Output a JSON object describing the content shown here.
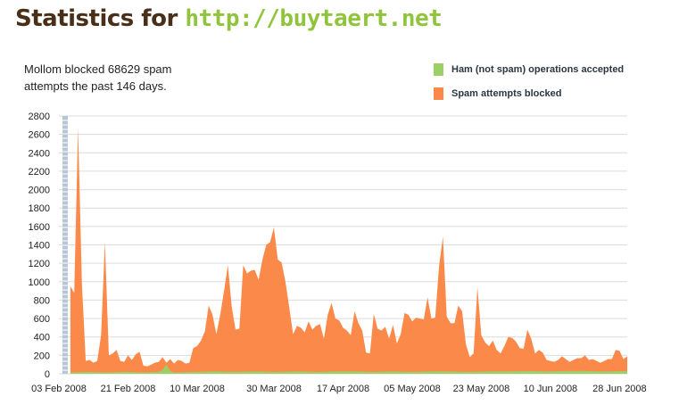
{
  "header": {
    "title_prefix": "Statistics for",
    "title_url": "http://buytaert.net"
  },
  "summary": {
    "line1": "Mollom blocked 68629 spam",
    "line2": "attempts the past 146 days."
  },
  "colors": {
    "spam": "#fb8a4a",
    "ham": "#9cd067",
    "grid": "#dcdcdc",
    "axis_bar": "#b7c6d6",
    "title_text": "#4a2f18",
    "url_text": "#8fc43c"
  },
  "chart_data": {
    "type": "area",
    "title": "",
    "xlabel": "",
    "ylabel": "",
    "ylim": [
      0,
      2800
    ],
    "yticks": [
      0,
      200,
      400,
      600,
      800,
      1000,
      1200,
      1400,
      1600,
      1800,
      2000,
      2200,
      2400,
      2600,
      2800
    ],
    "grid": true,
    "legend_position": "top-right",
    "x_range": [
      "2008-02-03",
      "2008-06-30"
    ],
    "xticks": [
      {
        "date": "2008-02-03",
        "label": "03 Feb 2008"
      },
      {
        "date": "2008-02-21",
        "label": "21 Feb 2008"
      },
      {
        "date": "2008-03-10",
        "label": "10 Mar 2008"
      },
      {
        "date": "2008-03-30",
        "label": "30 Mar 2008"
      },
      {
        "date": "2008-04-17",
        "label": "17 Apr 2008"
      },
      {
        "date": "2008-05-05",
        "label": "05 May 2008"
      },
      {
        "date": "2008-05-23",
        "label": "23 May 2008"
      },
      {
        "date": "2008-06-10",
        "label": "10 Jun 2008"
      },
      {
        "date": "2008-06-28",
        "label": "28 Jun 2008"
      }
    ],
    "series": [
      {
        "name": "Spam attempts blocked",
        "color": "#fb8a4a",
        "points": [
          [
            "2008-02-06",
            950
          ],
          [
            "2008-02-07",
            880
          ],
          [
            "2008-02-08",
            2670
          ],
          [
            "2008-02-09",
            980
          ],
          [
            "2008-02-10",
            140
          ],
          [
            "2008-02-11",
            150
          ],
          [
            "2008-02-12",
            120
          ],
          [
            "2008-02-13",
            140
          ],
          [
            "2008-02-14",
            420
          ],
          [
            "2008-02-15",
            1430
          ],
          [
            "2008-02-16",
            200
          ],
          [
            "2008-02-17",
            220
          ],
          [
            "2008-02-18",
            260
          ],
          [
            "2008-02-19",
            140
          ],
          [
            "2008-02-20",
            130
          ],
          [
            "2008-02-21",
            200
          ],
          [
            "2008-02-22",
            150
          ],
          [
            "2008-02-23",
            210
          ],
          [
            "2008-02-24",
            240
          ],
          [
            "2008-02-25",
            90
          ],
          [
            "2008-02-26",
            80
          ],
          [
            "2008-02-27",
            100
          ],
          [
            "2008-02-28",
            120
          ],
          [
            "2008-02-29",
            130
          ],
          [
            "2008-03-01",
            180
          ],
          [
            "2008-03-02",
            120
          ],
          [
            "2008-03-03",
            160
          ],
          [
            "2008-03-04",
            110
          ],
          [
            "2008-03-05",
            150
          ],
          [
            "2008-03-06",
            140
          ],
          [
            "2008-03-07",
            110
          ],
          [
            "2008-03-08",
            120
          ],
          [
            "2008-03-09",
            280
          ],
          [
            "2008-03-10",
            300
          ],
          [
            "2008-03-11",
            360
          ],
          [
            "2008-03-12",
            460
          ],
          [
            "2008-03-13",
            740
          ],
          [
            "2008-03-14",
            640
          ],
          [
            "2008-03-15",
            430
          ],
          [
            "2008-03-16",
            640
          ],
          [
            "2008-03-17",
            900
          ],
          [
            "2008-03-18",
            1180
          ],
          [
            "2008-03-19",
            730
          ],
          [
            "2008-03-20",
            480
          ],
          [
            "2008-03-21",
            490
          ],
          [
            "2008-03-22",
            1180
          ],
          [
            "2008-03-23",
            1090
          ],
          [
            "2008-03-24",
            1120
          ],
          [
            "2008-03-25",
            1130
          ],
          [
            "2008-03-26",
            1020
          ],
          [
            "2008-03-27",
            1240
          ],
          [
            "2008-03-28",
            1400
          ],
          [
            "2008-03-29",
            1430
          ],
          [
            "2008-03-30",
            1590
          ],
          [
            "2008-03-31",
            1240
          ],
          [
            "2008-04-01",
            1210
          ],
          [
            "2008-04-02",
            1000
          ],
          [
            "2008-04-03",
            720
          ],
          [
            "2008-04-04",
            430
          ],
          [
            "2008-04-05",
            520
          ],
          [
            "2008-04-06",
            500
          ],
          [
            "2008-04-07",
            450
          ],
          [
            "2008-04-08",
            570
          ],
          [
            "2008-04-09",
            480
          ],
          [
            "2008-04-10",
            520
          ],
          [
            "2008-04-11",
            540
          ],
          [
            "2008-04-12",
            380
          ],
          [
            "2008-04-13",
            640
          ],
          [
            "2008-04-14",
            770
          ],
          [
            "2008-04-15",
            600
          ],
          [
            "2008-04-16",
            580
          ],
          [
            "2008-04-17",
            500
          ],
          [
            "2008-04-18",
            470
          ],
          [
            "2008-04-19",
            420
          ],
          [
            "2008-04-20",
            680
          ],
          [
            "2008-04-21",
            550
          ],
          [
            "2008-04-22",
            470
          ],
          [
            "2008-04-23",
            230
          ],
          [
            "2008-04-24",
            220
          ],
          [
            "2008-04-25",
            650
          ],
          [
            "2008-04-26",
            490
          ],
          [
            "2008-04-27",
            470
          ],
          [
            "2008-04-28",
            510
          ],
          [
            "2008-04-29",
            380
          ],
          [
            "2008-04-30",
            530
          ],
          [
            "2008-05-01",
            330
          ],
          [
            "2008-05-02",
            430
          ],
          [
            "2008-05-03",
            660
          ],
          [
            "2008-05-04",
            640
          ],
          [
            "2008-05-05",
            570
          ],
          [
            "2008-05-06",
            610
          ],
          [
            "2008-05-07",
            600
          ],
          [
            "2008-05-08",
            590
          ],
          [
            "2008-05-09",
            830
          ],
          [
            "2008-05-10",
            600
          ],
          [
            "2008-05-11",
            610
          ],
          [
            "2008-05-12",
            1170
          ],
          [
            "2008-05-13",
            1490
          ],
          [
            "2008-05-14",
            620
          ],
          [
            "2008-05-15",
            550
          ],
          [
            "2008-05-16",
            550
          ],
          [
            "2008-05-17",
            740
          ],
          [
            "2008-05-18",
            680
          ],
          [
            "2008-05-19",
            320
          ],
          [
            "2008-05-20",
            180
          ],
          [
            "2008-05-21",
            220
          ],
          [
            "2008-05-22",
            940
          ],
          [
            "2008-05-23",
            420
          ],
          [
            "2008-05-24",
            340
          ],
          [
            "2008-05-25",
            300
          ],
          [
            "2008-05-26",
            360
          ],
          [
            "2008-05-27",
            260
          ],
          [
            "2008-05-28",
            220
          ],
          [
            "2008-05-29",
            300
          ],
          [
            "2008-05-30",
            400
          ],
          [
            "2008-05-31",
            390
          ],
          [
            "2008-06-01",
            350
          ],
          [
            "2008-06-02",
            280
          ],
          [
            "2008-06-03",
            270
          ],
          [
            "2008-06-04",
            480
          ],
          [
            "2008-06-05",
            380
          ],
          [
            "2008-06-06",
            220
          ],
          [
            "2008-06-07",
            260
          ],
          [
            "2008-06-08",
            230
          ],
          [
            "2008-06-09",
            150
          ],
          [
            "2008-06-10",
            140
          ],
          [
            "2008-06-11",
            130
          ],
          [
            "2008-06-12",
            150
          ],
          [
            "2008-06-13",
            190
          ],
          [
            "2008-06-14",
            160
          ],
          [
            "2008-06-15",
            130
          ],
          [
            "2008-06-16",
            150
          ],
          [
            "2008-06-17",
            170
          ],
          [
            "2008-06-18",
            170
          ],
          [
            "2008-06-19",
            200
          ],
          [
            "2008-06-20",
            150
          ],
          [
            "2008-06-21",
            160
          ],
          [
            "2008-06-22",
            140
          ],
          [
            "2008-06-23",
            120
          ],
          [
            "2008-06-24",
            140
          ],
          [
            "2008-06-25",
            160
          ],
          [
            "2008-06-26",
            160
          ],
          [
            "2008-06-27",
            260
          ],
          [
            "2008-06-28",
            250
          ],
          [
            "2008-06-29",
            160
          ],
          [
            "2008-06-30",
            190
          ]
        ]
      },
      {
        "name": "Ham (not spam) operations accepted",
        "color": "#9cd067",
        "points": [
          [
            "2008-02-06",
            15
          ],
          [
            "2008-02-10",
            20
          ],
          [
            "2008-02-15",
            15
          ],
          [
            "2008-02-20",
            20
          ],
          [
            "2008-02-25",
            15
          ],
          [
            "2008-02-29",
            20
          ],
          [
            "2008-03-01",
            40
          ],
          [
            "2008-03-02",
            100
          ],
          [
            "2008-03-03",
            30
          ],
          [
            "2008-03-04",
            15
          ],
          [
            "2008-03-10",
            20
          ],
          [
            "2008-03-15",
            25
          ],
          [
            "2008-03-20",
            20
          ],
          [
            "2008-03-25",
            25
          ],
          [
            "2008-03-30",
            20
          ],
          [
            "2008-04-05",
            25
          ],
          [
            "2008-04-10",
            20
          ],
          [
            "2008-04-15",
            25
          ],
          [
            "2008-04-20",
            25
          ],
          [
            "2008-04-25",
            20
          ],
          [
            "2008-04-30",
            25
          ],
          [
            "2008-05-05",
            20
          ],
          [
            "2008-05-10",
            25
          ],
          [
            "2008-05-15",
            25
          ],
          [
            "2008-05-20",
            20
          ],
          [
            "2008-05-25",
            25
          ],
          [
            "2008-05-30",
            25
          ],
          [
            "2008-06-04",
            30
          ],
          [
            "2008-06-09",
            25
          ],
          [
            "2008-06-14",
            30
          ],
          [
            "2008-06-19",
            30
          ],
          [
            "2008-06-24",
            25
          ],
          [
            "2008-06-30",
            30
          ]
        ]
      }
    ]
  }
}
